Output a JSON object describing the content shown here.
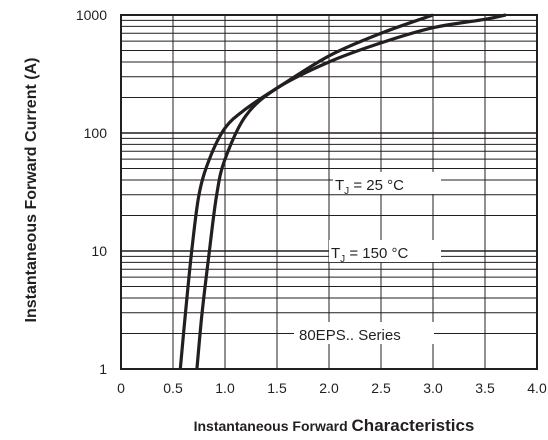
{
  "chart_data": {
    "type": "line",
    "xlabel_part1": "Instantaneous Forward",
    "xlabel_part2": "Characteristics",
    "ylabel": "Instantaneous Forward Current (A)",
    "x_scale": "linear",
    "y_scale": "log",
    "xlim": [
      0,
      4.0
    ],
    "ylim": [
      1,
      1000
    ],
    "x_ticks": [
      "0",
      "0.5",
      "1.0",
      "1.5",
      "2.0",
      "2.5",
      "3.0",
      "3.5",
      "4.0"
    ],
    "y_ticks": [
      "1",
      "10",
      "100",
      "1000"
    ],
    "grid": true,
    "series": [
      {
        "name": "TJ = 150 °C",
        "x": [
          0.57,
          0.62,
          0.68,
          0.75,
          0.85,
          1.0,
          1.2,
          1.5,
          2.0,
          2.5,
          3.0
        ],
        "y": [
          1,
          3,
          10,
          30,
          60,
          110,
          160,
          240,
          450,
          700,
          1000
        ]
      },
      {
        "name": "TJ = 25 °C",
        "x": [
          0.73,
          0.78,
          0.85,
          0.92,
          1.0,
          1.2,
          1.5,
          2.0,
          2.5,
          3.0,
          3.5,
          3.7
        ],
        "y": [
          1,
          3,
          10,
          30,
          60,
          140,
          240,
          400,
          580,
          780,
          920,
          1000
        ]
      }
    ],
    "annotations": {
      "t25_main": "T",
      "t25_sub": "J",
      "t25_rest": " = 25 °C",
      "t150_main": "T",
      "t150_sub": "J",
      "t150_rest": " = 150 °C",
      "series_label": "80EPS.. Series"
    }
  }
}
